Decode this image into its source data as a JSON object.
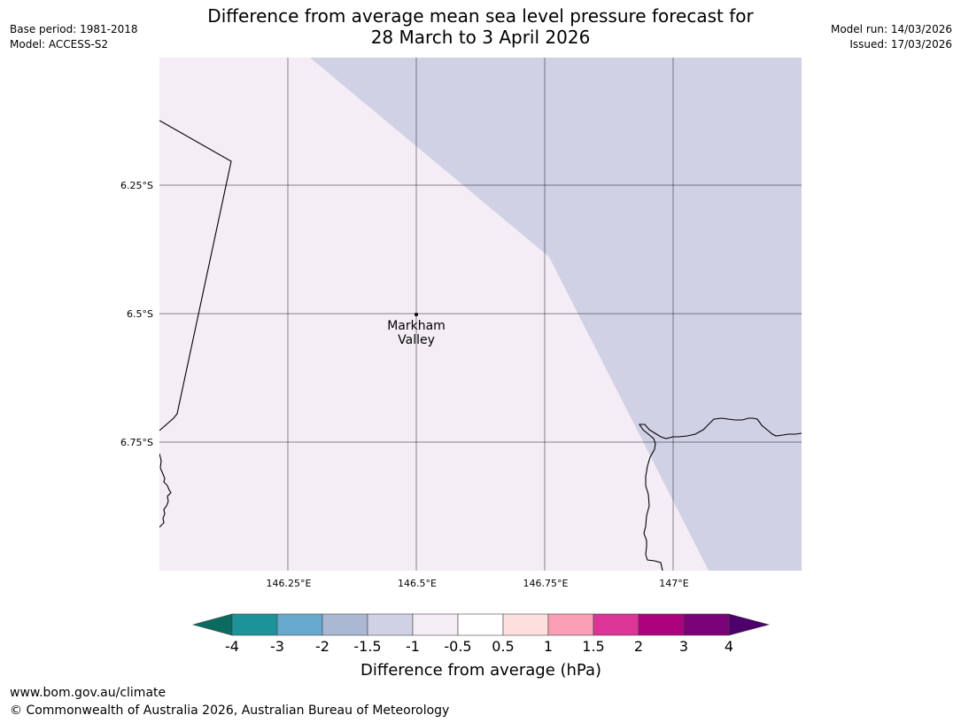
{
  "title": {
    "line1": "Difference from average mean sea level pressure forecast for",
    "line2": "28 March to 3 April 2026"
  },
  "meta_left": {
    "base_period": "Base period: 1981-2018",
    "model": "Model: ACCESS-S2"
  },
  "meta_right": {
    "model_run": "Model run: 14/03/2026",
    "issued": "Issued: 17/03/2026"
  },
  "map": {
    "lon_ticks": [
      "146.25°E",
      "146.5°E",
      "146.75°E",
      "147°E"
    ],
    "lat_ticks": [
      "6.25°S",
      "6.5°S",
      "6.75°S"
    ],
    "place": {
      "name_line1": "Markham",
      "name_line2": "Valley"
    },
    "background_color": "#f4edf5",
    "anomaly_region_color": "#d0d1e5"
  },
  "colorbar": {
    "title": "Difference from average (hPa)",
    "labels": [
      "-4",
      "-3",
      "-2",
      "-1.5",
      "-1",
      "-0.5",
      "0.5",
      "1",
      "1.5",
      "2",
      "3",
      "4"
    ],
    "colors": [
      "#1b9399",
      "#67a9cf",
      "#abb8d3",
      "#d0d1e5",
      "#f4edf5",
      "#ffffff",
      "#fde0dd",
      "#fa9fb5",
      "#dd3497",
      "#ae017e",
      "#7a0177"
    ],
    "low_extend_color": "#0b6b61",
    "high_extend_color": "#4d006b"
  },
  "footer": {
    "url": "www.bom.gov.au/climate",
    "copyright": "© Commonwealth of Australia 2026, Australian Bureau of Meteorology"
  }
}
